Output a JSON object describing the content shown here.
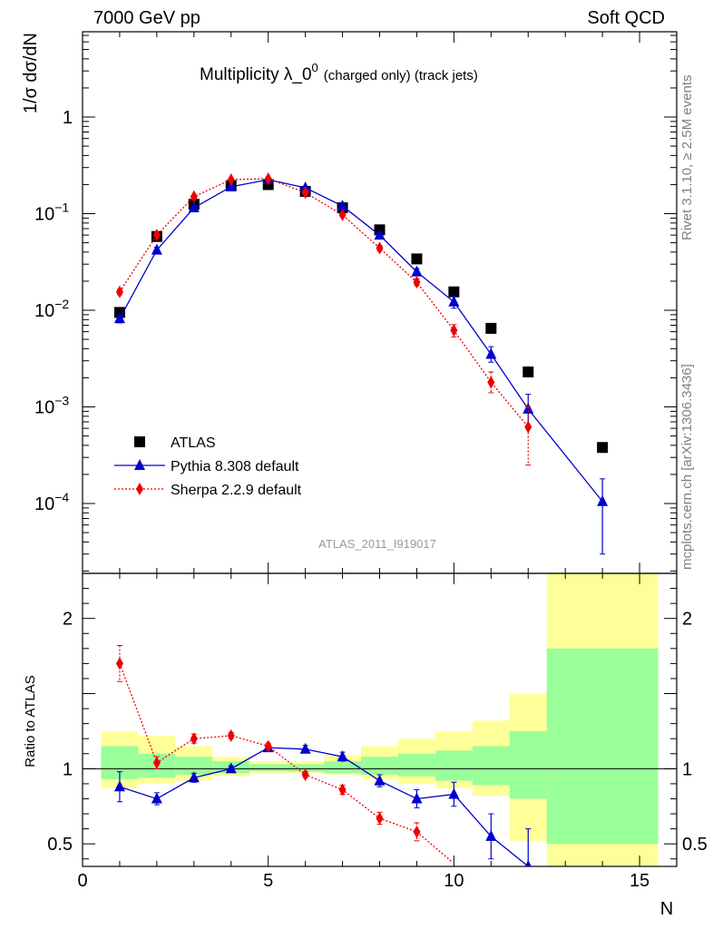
{
  "header": {
    "left": "7000 GeV pp",
    "right": "Soft QCD"
  },
  "side": {
    "rivet": "Rivet 3.1.10, ≥ 2.5M events",
    "mcplots": "mcplots.cern.ch [arXiv:1306.3436]"
  },
  "chart_data": [
    {
      "type": "scatter",
      "panel": "main",
      "title_main": "Multiplicity λ_0",
      "title_sup": "0",
      "title_suffix": "(charged only) (track jets)",
      "ylabel": "1/σ dσ/dN",
      "yscale": "log",
      "ylim": [
        2e-05,
        5
      ],
      "xlim": [
        0,
        16
      ],
      "ytick_labels": [
        "1",
        "10",
        "10",
        "10",
        "10"
      ],
      "ytick_exponents": [
        "",
        "−1",
        "−2",
        "−3",
        "−4"
      ],
      "watermark": "ATLAS_2011_I919017",
      "legend": [
        "ATLAS",
        "Pythia 8.308 default",
        "Sherpa 2.2.9 default"
      ],
      "legend_position": "lower-left",
      "series": [
        {
          "name": "ATLAS",
          "color": "#000000",
          "marker": "square",
          "x": [
            1,
            2,
            3,
            4,
            5,
            6,
            7,
            8,
            9,
            10,
            11,
            12,
            14
          ],
          "y": [
            0.0095,
            0.058,
            0.125,
            0.195,
            0.2,
            0.17,
            0.115,
            0.068,
            0.034,
            0.0155,
            0.0065,
            0.0023,
            0.00038
          ]
        },
        {
          "name": "Pythia 8.308 default",
          "color": "#0000cc",
          "marker": "triangle",
          "line": "solid",
          "x": [
            1,
            2,
            3,
            4,
            5,
            6,
            7,
            8,
            9,
            10,
            11,
            12,
            14
          ],
          "y": [
            0.0082,
            0.042,
            0.115,
            0.19,
            0.225,
            0.185,
            0.12,
            0.06,
            0.025,
            0.0122,
            0.0035,
            0.00095,
            0.000105
          ],
          "err_lo": [
            0.0074,
            0.039,
            0.11,
            0.185,
            0.22,
            0.18,
            0.115,
            0.057,
            0.023,
            0.0105,
            0.0029,
            0.0006,
            3e-05
          ],
          "err_hi": [
            0.009,
            0.045,
            0.12,
            0.195,
            0.23,
            0.19,
            0.125,
            0.063,
            0.027,
            0.014,
            0.0042,
            0.00135,
            0.00018
          ]
        },
        {
          "name": "Sherpa 2.2.9 default",
          "color": "#ee0000",
          "marker": "diamond",
          "line": "dotted",
          "x": [
            1,
            2,
            3,
            4,
            5,
            6,
            7,
            8,
            9,
            10,
            11,
            12
          ],
          "y": [
            0.0155,
            0.06,
            0.15,
            0.225,
            0.23,
            0.165,
            0.097,
            0.044,
            0.0195,
            0.0062,
            0.0018,
            0.00062
          ],
          "err_lo": [
            0.0145,
            0.057,
            0.145,
            0.22,
            0.225,
            0.16,
            0.093,
            0.041,
            0.018,
            0.0053,
            0.0014,
            0.00025
          ],
          "err_hi": [
            0.0165,
            0.063,
            0.155,
            0.23,
            0.235,
            0.17,
            0.101,
            0.047,
            0.021,
            0.0071,
            0.0023,
            0.001
          ]
        }
      ]
    },
    {
      "type": "scatter",
      "panel": "ratio",
      "ylabel": "Ratio to ATLAS",
      "xlabel": "N",
      "xlim": [
        0,
        16
      ],
      "ylim": [
        0.35,
        2.3
      ],
      "xticks": [
        0,
        5,
        10,
        15
      ],
      "yticks": [
        0.5,
        1,
        2
      ],
      "uncertainty_bands": {
        "x_edges": [
          0.5,
          1.5,
          2.5,
          3.5,
          4.5,
          5.5,
          6.5,
          7.5,
          8.5,
          9.5,
          10.5,
          11.5,
          12.5,
          15.5
        ],
        "yellow_lo": [
          0.87,
          0.9,
          0.92,
          0.95,
          0.97,
          0.97,
          0.96,
          0.93,
          0.9,
          0.87,
          0.82,
          0.52,
          0.3
        ],
        "yellow_hi": [
          1.25,
          1.22,
          1.15,
          1.08,
          1.05,
          1.05,
          1.09,
          1.15,
          1.2,
          1.25,
          1.32,
          1.5,
          2.3
        ],
        "green_lo": [
          0.93,
          0.94,
          0.96,
          0.97,
          0.985,
          0.98,
          0.97,
          0.96,
          0.95,
          0.92,
          0.89,
          0.8,
          0.5
        ],
        "green_hi": [
          1.15,
          1.1,
          1.08,
          1.05,
          1.03,
          1.03,
          1.05,
          1.08,
          1.1,
          1.12,
          1.15,
          1.25,
          1.8
        ]
      },
      "series": [
        {
          "name": "Pythia 8.308 default",
          "color": "#0000cc",
          "marker": "triangle",
          "x": [
            1,
            2,
            3,
            4,
            5,
            6,
            7,
            8,
            9,
            10,
            11,
            12
          ],
          "y": [
            0.88,
            0.8,
            0.94,
            1.0,
            1.14,
            1.13,
            1.08,
            0.92,
            0.8,
            0.83,
            0.55,
            0.35
          ],
          "err": [
            0.1,
            0.04,
            0.03,
            0.02,
            0.02,
            0.025,
            0.03,
            0.04,
            0.06,
            0.08,
            0.15,
            0.25
          ]
        },
        {
          "name": "Sherpa 2.2.9 default",
          "color": "#ee0000",
          "marker": "diamond",
          "x": [
            1,
            2,
            3,
            4,
            5,
            6,
            7,
            8,
            9,
            9.95
          ],
          "y": [
            1.7,
            1.04,
            1.2,
            1.22,
            1.15,
            0.96,
            0.86,
            0.67,
            0.58,
            0.38
          ],
          "err": [
            0.12,
            0.04,
            0.03,
            0.02,
            0.02,
            0.02,
            0.03,
            0.04,
            0.06,
            0
          ],
          "hidden_marker": [
            false,
            false,
            false,
            false,
            false,
            false,
            false,
            false,
            false,
            true
          ]
        }
      ]
    }
  ]
}
